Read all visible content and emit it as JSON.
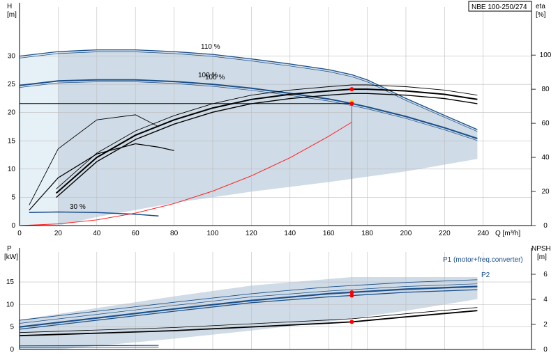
{
  "pump_title": "NBE 100-250/274",
  "colors": {
    "envelope": "#cfdbe6",
    "envelope_light": "#e6f0f7",
    "head": "#1a4f8a",
    "efficiency": "#000000",
    "system": "#ff2020",
    "operating_point": "#ff0000",
    "operating_point_marker": "#ffd700"
  },
  "chart_data": [
    {
      "id": "top",
      "type": "line",
      "title": "NBE 100-250/274",
      "xlabel": "Q [m³/h]",
      "x_ticks": [
        "0",
        "20",
        "40",
        "60",
        "80",
        "100",
        "120",
        "140",
        "160",
        "180",
        "200",
        "220",
        "240"
      ],
      "xlim": [
        0,
        265
      ],
      "y_left": {
        "label_top": "H",
        "label_unit": "[m]",
        "ticks": [
          "0",
          "5",
          "10",
          "15",
          "20",
          "25",
          "30"
        ],
        "ylim": [
          0,
          35
        ]
      },
      "y_right": {
        "label_top": "eta",
        "label_unit": "[%]",
        "ticks": [
          "0",
          "20",
          "40",
          "60",
          "80",
          "100"
        ],
        "ylim": [
          0,
          116
        ]
      },
      "series": [
        {
          "name": "110 %",
          "kind": "head",
          "axis": "left",
          "x": [
            0,
            20,
            40,
            60,
            80,
            100,
            120,
            140,
            160,
            172,
            180,
            200,
            220,
            237
          ],
          "y": [
            30.0,
            30.8,
            31.1,
            31.1,
            30.8,
            30.3,
            29.5,
            28.6,
            27.6,
            26.7,
            25.8,
            22.5,
            19.5,
            17.0
          ]
        },
        {
          "name": "100 %",
          "kind": "head",
          "axis": "left",
          "x": [
            0,
            20,
            40,
            60,
            80,
            100,
            120,
            140,
            160,
            172,
            180,
            200,
            220,
            237
          ],
          "y": [
            24.8,
            25.6,
            25.8,
            25.8,
            25.5,
            25.0,
            24.3,
            23.4,
            22.4,
            21.6,
            21.0,
            19.3,
            17.3,
            15.4
          ]
        },
        {
          "name": "30 %",
          "kind": "head",
          "axis": "left",
          "x": [
            5,
            20,
            40,
            60,
            72
          ],
          "y": [
            2.3,
            2.4,
            2.3,
            2.0,
            1.7
          ]
        },
        {
          "name": "",
          "kind": "efficiency",
          "axis": "right",
          "x": [
            19,
            40,
            60,
            80,
            100,
            120,
            140,
            160,
            172,
            180,
            200,
            220,
            237
          ],
          "y": [
            19,
            40,
            53,
            62,
            69,
            74,
            77,
            79,
            80,
            80,
            79,
            77,
            74
          ]
        },
        {
          "name": "",
          "kind": "system",
          "axis": "left",
          "x": [
            0,
            20,
            40,
            60,
            80,
            100,
            120,
            140,
            160,
            172
          ],
          "y": [
            0,
            0.3,
            1.0,
            2.2,
            3.9,
            6.1,
            8.8,
            12.0,
            15.8,
            18.3
          ]
        }
      ],
      "duty_point": {
        "q": 172,
        "h": 21.6,
        "eta": 80
      },
      "labels": [
        "110 %",
        "100 %",
        "100 %",
        "30 %"
      ]
    },
    {
      "id": "bottom",
      "type": "line",
      "xlim": [
        0,
        265
      ],
      "y_left": {
        "label_top": "P",
        "label_unit": "[kW]",
        "ticks": [
          "0",
          "5",
          "10",
          "15"
        ],
        "ylim": [
          0,
          19.5
        ]
      },
      "y_right": {
        "label_top": "NPSH",
        "label_unit": "[m]",
        "ticks": [
          "0",
          "2",
          "4",
          "6"
        ],
        "ylim": [
          0,
          7.0
        ]
      },
      "series": [
        {
          "name": "P1 (motor+freq.converter)",
          "kind": "power",
          "axis": "left",
          "x": [
            0,
            40,
            80,
            120,
            160,
            172,
            200,
            237
          ],
          "y": [
            5.0,
            7.0,
            9.0,
            10.9,
            12.4,
            12.7,
            13.4,
            14.0
          ]
        },
        {
          "name": "P2",
          "kind": "power",
          "axis": "left",
          "x": [
            0,
            40,
            80,
            120,
            160,
            172,
            200,
            237
          ],
          "y": [
            4.5,
            6.5,
            8.5,
            10.4,
            11.7,
            12.0,
            12.7,
            13.3
          ]
        },
        {
          "name": "",
          "kind": "npsh",
          "axis": "right",
          "x": [
            0,
            40,
            80,
            120,
            160,
            172,
            200,
            237
          ],
          "y": [
            1.1,
            1.3,
            1.5,
            1.8,
            2.1,
            2.2,
            2.6,
            3.1
          ]
        }
      ],
      "duty_point": {
        "q": 172,
        "p1": 12.7,
        "p2": 12.0,
        "npsh": 2.2
      }
    }
  ]
}
